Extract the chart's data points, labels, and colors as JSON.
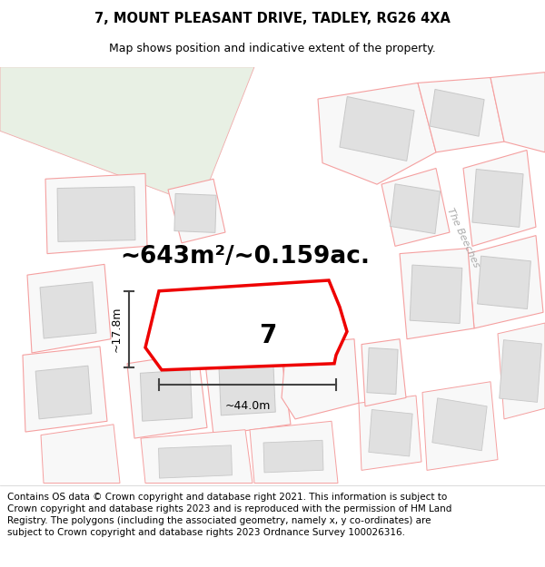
{
  "title": "7, MOUNT PLEASANT DRIVE, TADLEY, RG26 4XA",
  "subtitle": "Map shows position and indicative extent of the property.",
  "area_text": "~643m²/~0.159ac.",
  "number_label": "7",
  "width_label": "~44.0m",
  "height_label": "~17.8m",
  "footer_text": "Contains OS data © Crown copyright and database right 2021. This information is subject to Crown copyright and database rights 2023 and is reproduced with the permission of HM Land Registry. The polygons (including the associated geometry, namely x, y co-ordinates) are subject to Crown copyright and database rights 2023 Ordnance Survey 100026316.",
  "title_fontsize": 10.5,
  "subtitle_fontsize": 9,
  "area_fontsize": 19,
  "number_fontsize": 20,
  "dim_fontsize": 9,
  "footer_fontsize": 7.5,
  "beeches_fontsize": 8,
  "red_color": "#ee0000",
  "pink_color": "#f5a0a0",
  "pink_thin": "#f0aaaa",
  "building_fill": "#e0e0e0",
  "building_edge": "#c8c8c8",
  "green_fill": "#e8f0e4",
  "white_fill": "#ffffff",
  "plot_fill": "#f8f8f8",
  "dim_color": "#444444",
  "beeches_color": "#aaaaaa"
}
